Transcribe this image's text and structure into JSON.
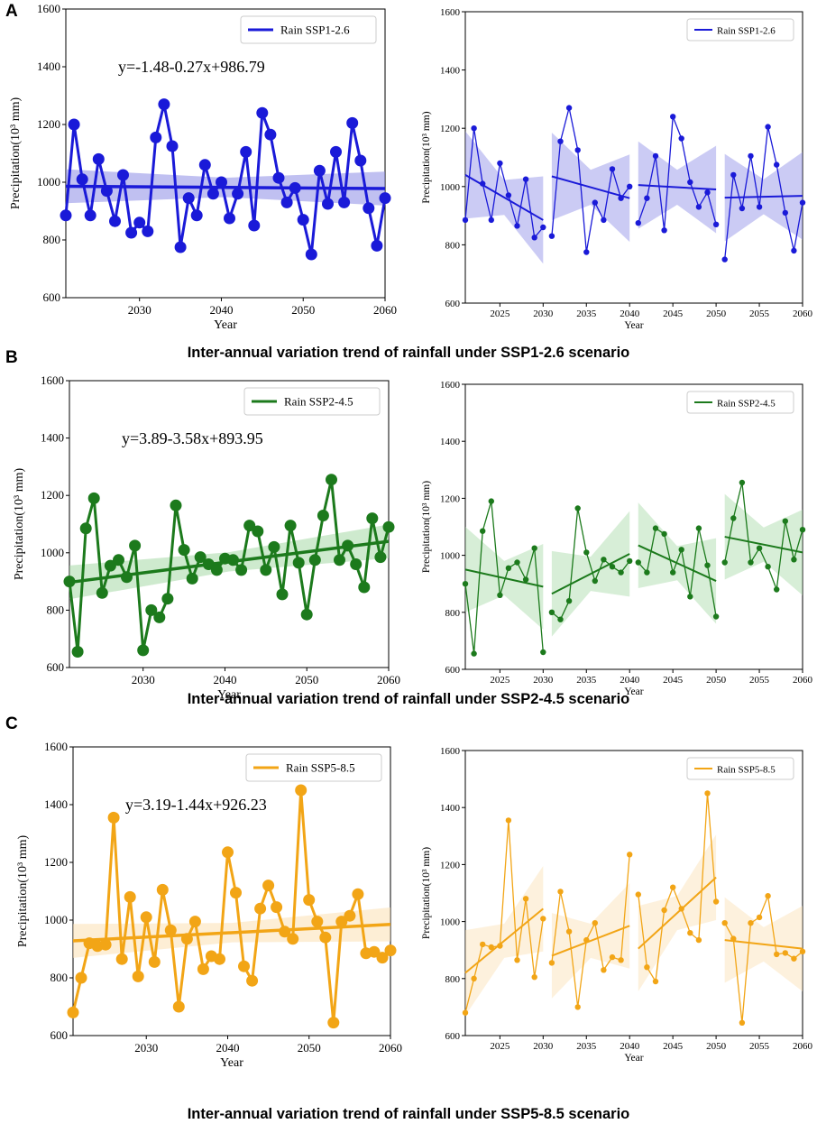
{
  "chart_data": [
    {
      "panel": "A",
      "type": "line",
      "caption": "Inter-annual variation trend of rainfall under SSP1-2.6 scenario",
      "color": "#1a1ad8",
      "ci_color": "#8c8ce6",
      "legend_left": "Rain SSP1-2.6",
      "legend_right": "Rain SSP1-2.6",
      "equation": "y=-1.48-0.27x+986.79",
      "xlabel": "Year",
      "ylabel": "Precipitation(10³ mm)",
      "ylim": [
        600,
        1600
      ],
      "yticks": [
        "600",
        "800",
        "1000",
        "1200",
        "1400",
        "1600"
      ],
      "xticks_left": [
        "2030",
        "2040",
        "2050",
        "2060"
      ],
      "xticks_right": [
        "2025",
        "2030",
        "2035",
        "2040",
        "2045",
        "2050",
        "2055",
        "2060"
      ],
      "x": [
        2021,
        2022,
        2023,
        2024,
        2025,
        2026,
        2027,
        2028,
        2029,
        2030,
        2031,
        2032,
        2033,
        2034,
        2035,
        2036,
        2037,
        2038,
        2039,
        2040,
        2041,
        2042,
        2043,
        2044,
        2045,
        2046,
        2047,
        2048,
        2049,
        2050,
        2051,
        2052,
        2053,
        2054,
        2055,
        2056,
        2057,
        2058,
        2059,
        2060
      ],
      "values": [
        885,
        1200,
        1010,
        885,
        1080,
        970,
        865,
        1025,
        825,
        860,
        830,
        1155,
        1270,
        1125,
        775,
        945,
        885,
        1060,
        960,
        1000,
        875,
        960,
        1105,
        850,
        1240,
        1165,
        1015,
        930,
        980,
        870,
        750,
        1040,
        925,
        1105,
        930,
        1205,
        1075,
        910,
        780,
        945
      ],
      "trend": {
        "start": 986,
        "end": 978
      },
      "decade_trends": [
        [
          1040,
          885
        ],
        [
          1035,
          960
        ],
        [
          1005,
          990
        ],
        [
          962,
          968
        ]
      ]
    },
    {
      "panel": "B",
      "type": "line",
      "caption": "Inter-annual variation trend of rainfall under SSP2-4.5 scenario",
      "color": "#1c7a1c",
      "ci_color": "#a6d9a6",
      "legend_left": "Rain SSP2-4.5",
      "legend_right": "Rain SSP2-4.5",
      "equation": "y=3.89-3.58x+893.95",
      "xlabel": "Year",
      "ylabel": "Precipitation(10³ mm)",
      "ylim": [
        600,
        1600
      ],
      "yticks": [
        "600",
        "800",
        "1000",
        "1200",
        "1400",
        "1600"
      ],
      "xticks_left": [
        "2030",
        "2040",
        "2050",
        "2060"
      ],
      "xticks_right": [
        "2025",
        "2030",
        "2035",
        "2040",
        "2045",
        "2050",
        "2055",
        "2060"
      ],
      "x": [
        2021,
        2022,
        2023,
        2024,
        2025,
        2026,
        2027,
        2028,
        2029,
        2030,
        2031,
        2032,
        2033,
        2034,
        2035,
        2036,
        2037,
        2038,
        2039,
        2040,
        2041,
        2042,
        2043,
        2044,
        2045,
        2046,
        2047,
        2048,
        2049,
        2050,
        2051,
        2052,
        2053,
        2054,
        2055,
        2056,
        2057,
        2058,
        2059,
        2060
      ],
      "values": [
        900,
        655,
        1085,
        1190,
        860,
        955,
        975,
        915,
        1025,
        660,
        800,
        775,
        840,
        1165,
        1010,
        910,
        985,
        960,
        940,
        980,
        975,
        940,
        1095,
        1075,
        940,
        1020,
        855,
        1095,
        965,
        785,
        975,
        1130,
        1255,
        975,
        1025,
        960,
        880,
        1120,
        985,
        1090
      ],
      "trend": {
        "start": 897,
        "end": 1040
      },
      "decade_trends": [
        [
          950,
          890
        ],
        [
          865,
          1005
        ],
        [
          1035,
          910
        ],
        [
          1065,
          1010
        ]
      ]
    },
    {
      "panel": "C",
      "type": "line",
      "caption": "Inter-annual variation trend of rainfall under SSP5-8.5 scenario",
      "color": "#f2a516",
      "ci_color": "#fbe0b3",
      "legend_left": "Rain SSP5-8.5",
      "legend_right": "Rain SSP5-8.5",
      "equation": "y=3.19-1.44x+926.23",
      "xlabel": "Year",
      "ylabel": "Precipitation(10³ mm)",
      "ylim": [
        600,
        1600
      ],
      "yticks": [
        "600",
        "800",
        "1000",
        "1200",
        "1400",
        "1600"
      ],
      "xticks_left": [
        "2030",
        "2040",
        "2050",
        "2060"
      ],
      "xticks_right": [
        "2025",
        "2030",
        "2035",
        "2040",
        "2045",
        "2050",
        "2055",
        "2060"
      ],
      "x": [
        2021,
        2022,
        2023,
        2024,
        2025,
        2026,
        2027,
        2028,
        2029,
        2030,
        2031,
        2032,
        2033,
        2034,
        2035,
        2036,
        2037,
        2038,
        2039,
        2040,
        2041,
        2042,
        2043,
        2044,
        2045,
        2046,
        2047,
        2048,
        2049,
        2050,
        2051,
        2052,
        2053,
        2054,
        2055,
        2056,
        2057,
        2058,
        2059,
        2060
      ],
      "values": [
        680,
        800,
        920,
        910,
        915,
        1355,
        865,
        1080,
        805,
        1010,
        855,
        1105,
        965,
        700,
        935,
        995,
        830,
        875,
        865,
        1235,
        1095,
        840,
        790,
        1040,
        1120,
        1045,
        960,
        935,
        1450,
        1070,
        995,
        940,
        645,
        995,
        1015,
        1090,
        885,
        890,
        870,
        895
      ],
      "trend": {
        "start": 928,
        "end": 985
      },
      "decade_trends": [
        [
          820,
          1045
        ],
        [
          880,
          985
        ],
        [
          905,
          1155
        ],
        [
          935,
          905
        ]
      ]
    }
  ]
}
